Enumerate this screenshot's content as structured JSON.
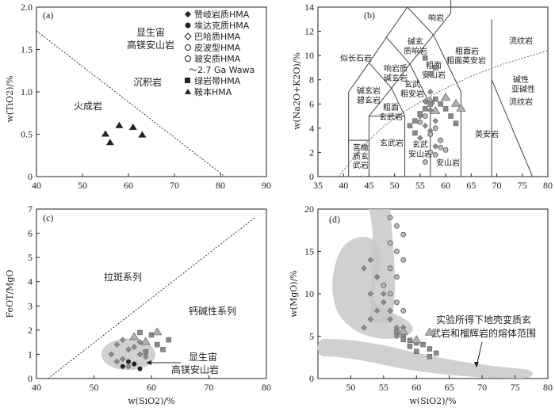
{
  "chart_data": [
    {
      "panel": "(a)",
      "type": "scatter",
      "xlim": [
        40,
        90
      ],
      "ylim": [
        0,
        2.0
      ],
      "xticks": [
        "40",
        "50",
        "60",
        "70",
        "80",
        "90"
      ],
      "yticks": [
        "0",
        "0.5",
        "1.0",
        "1.5",
        "2.0"
      ],
      "ylabel": "w(TiO2)/%",
      "divider": [
        [
          40,
          1.72
        ],
        [
          81,
          0
        ]
      ],
      "annotations": [
        "显生宙",
        "高镁安山岩",
        "沉积岩",
        "火成岩"
      ],
      "legend": [
        "赞岐岩质HMA",
        "埃达克质HMA",
        "巴哈质HMA",
        "皮波型HMA",
        "玻安质HMA",
        "～2.7 Ga Wawa",
        "绿岩带HMA",
        "鞍本HMA"
      ],
      "series": [
        {
          "name": "鞍本HMA",
          "x": [
            55,
            56,
            58,
            61,
            63
          ],
          "y": [
            0.5,
            0.4,
            0.6,
            0.58,
            0.49
          ]
        }
      ]
    },
    {
      "panel": "(b)",
      "type": "scatter",
      "xlim": [
        35,
        80
      ],
      "ylim": [
        0,
        14
      ],
      "xticks": [
        "35",
        "40",
        "45",
        "50",
        "55",
        "60",
        "65",
        "70",
        "75",
        "80"
      ],
      "yticks": [
        "0",
        "2",
        "4",
        "6",
        "8",
        "10",
        "12",
        "14"
      ],
      "ylabel": "w(Na2O+K2O)/%",
      "field_labels": [
        "响岩",
        "碱玄质响岩",
        "似长石岩",
        "响岩质碱玄岩",
        "粗面岩",
        "粗面英安岩",
        "流纹岩",
        "碱玄岩碧玄岩",
        "粗面安山岩",
        "玄武粗安岩",
        "碱性",
        "亚碱性",
        "粗面玄武岩",
        "流纹岩",
        "苦橄质玄武岩",
        "玄武岩",
        "玄武安山岩",
        "安山岩",
        "英安岩"
      ],
      "series": [
        {
          "name": "鞍本HMA",
          "x": [
            57,
            58,
            60,
            62,
            63
          ],
          "y": [
            6.2,
            5.4,
            6.5,
            6.0,
            5.6
          ]
        },
        {
          "name": "赞岐岩质HMA",
          "x": [
            55,
            56,
            57,
            58,
            59,
            56,
            57,
            58,
            55,
            57
          ],
          "y": [
            5.0,
            4.2,
            3.8,
            4.6,
            3.0,
            6.2,
            7.0,
            2.5,
            3.2,
            5.5
          ]
        },
        {
          "name": "玻安质HMA",
          "x": [
            56,
            57,
            58,
            59,
            57,
            58,
            56,
            55,
            59,
            60
          ],
          "y": [
            1.2,
            2.0,
            1.8,
            2.4,
            3.5,
            4.0,
            5.0,
            4.5,
            3.0,
            2.2
          ]
        },
        {
          "name": "绿岩带HMA",
          "x": [
            53,
            54,
            55,
            56,
            57,
            58,
            59,
            60,
            61,
            62,
            57,
            58,
            56,
            54
          ],
          "y": [
            4.2,
            4.6,
            5.2,
            5.6,
            6.0,
            6.4,
            6.0,
            5.6,
            5.0,
            4.4,
            8.5,
            9.0,
            9.8,
            3.6
          ]
        }
      ]
    },
    {
      "panel": "(c)",
      "type": "scatter",
      "xlim": [
        40,
        80
      ],
      "ylim": [
        0,
        7
      ],
      "xticks": [
        "40",
        "50",
        "60",
        "70",
        "80"
      ],
      "yticks": [
        "0",
        "1",
        "2",
        "3",
        "4",
        "5",
        "6",
        "7"
      ],
      "xlabel": "w(SiO2)/%",
      "ylabel": "FeOT/MgO",
      "divider": [
        [
          42,
          0
        ],
        [
          78,
          6.65
        ]
      ],
      "annotations": [
        "拉斑系列",
        "钙碱性系列",
        "显生宙",
        "高镁安山岩"
      ],
      "series": [
        {
          "name": "赞岐岩质HMA",
          "x": [
            53,
            54,
            55,
            56,
            57,
            58,
            55,
            56,
            57,
            54,
            58,
            59
          ],
          "y": [
            1.0,
            1.4,
            0.8,
            1.2,
            0.6,
            1.0,
            1.6,
            0.5,
            1.3,
            0.7,
            1.5,
            0.9
          ]
        },
        {
          "name": "绿岩带HMA",
          "x": [
            60,
            61,
            62,
            63,
            59,
            58
          ],
          "y": [
            1.8,
            1.4,
            1.2,
            1.6,
            1.1,
            1.9
          ]
        },
        {
          "name": "鞍本HMA",
          "x": [
            57,
            59,
            61
          ],
          "y": [
            1.7,
            1.5,
            1.9
          ]
        },
        {
          "name": "埃达克质HMA",
          "x": [
            55,
            56,
            57,
            58
          ],
          "y": [
            0.5,
            0.7,
            0.6,
            0.4
          ]
        }
      ]
    },
    {
      "panel": "(d)",
      "type": "scatter",
      "xlim": [
        45,
        80
      ],
      "ylim": [
        0,
        20
      ],
      "xticks": [
        "50",
        "55",
        "60",
        "65",
        "70",
        "75",
        "80"
      ],
      "yticks": [
        "0",
        "5",
        "10",
        "15",
        "20"
      ],
      "xlabel": "w(SiO2)/%",
      "ylabel": "w(MgO)/%",
      "annotations": [
        "实验所得下地壳变质玄",
        "武岩和榴辉岩的熔体范围"
      ],
      "series": [
        {
          "name": "赞岐岩质HMA",
          "x": [
            52,
            53,
            54,
            55,
            56,
            57,
            53,
            54,
            55,
            56,
            52,
            53,
            54,
            55,
            57,
            58
          ],
          "y": [
            6,
            7,
            8,
            9,
            7,
            6,
            10,
            12,
            11,
            8,
            13,
            14,
            12,
            10,
            5,
            6
          ]
        },
        {
          "name": "玻安质HMA",
          "x": [
            56,
            57,
            58,
            56,
            57,
            58,
            56,
            57,
            55,
            56,
            57,
            58
          ],
          "y": [
            19,
            18,
            17,
            16,
            15,
            14,
            13,
            12,
            11,
            10,
            9,
            8
          ]
        },
        {
          "name": "绿岩带HMA",
          "x": [
            57,
            58,
            59,
            60,
            61,
            62,
            63,
            58,
            59,
            60,
            62
          ],
          "y": [
            5.5,
            5.0,
            4.5,
            4.2,
            4.0,
            3.5,
            3.0,
            4.6,
            3.8,
            3.2,
            2.6
          ]
        },
        {
          "name": "鞍本HMA",
          "x": [
            58,
            60,
            62
          ],
          "y": [
            5.5,
            4.5,
            5.4
          ]
        }
      ]
    }
  ]
}
